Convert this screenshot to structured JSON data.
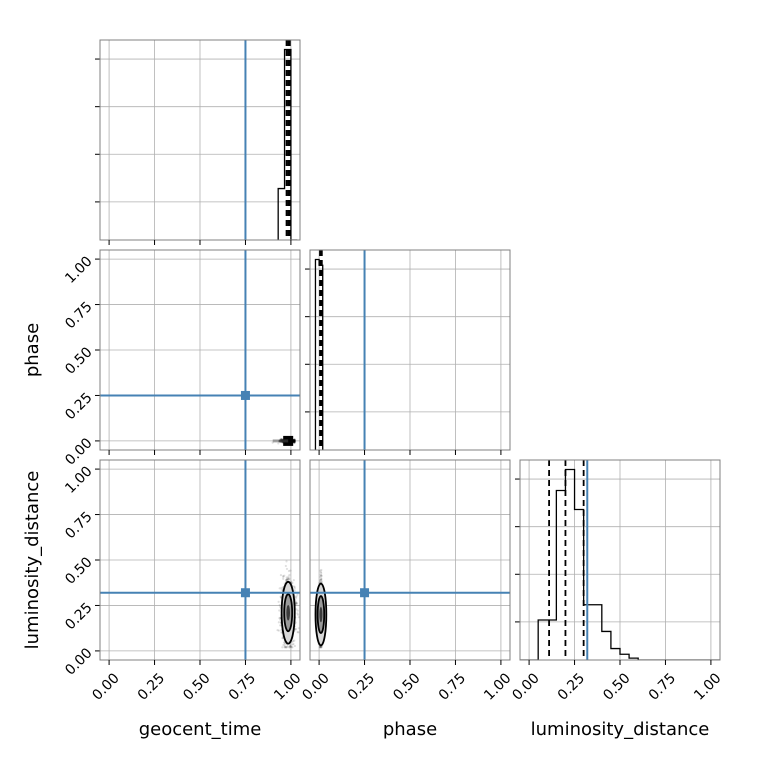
{
  "chart_data": {
    "type": "corner",
    "parameters": [
      "geocent_time",
      "phase",
      "luminosity_distance"
    ],
    "axis_labels": {
      "geocent_time": "geocent_time",
      "phase": "phase",
      "luminosity_distance": "luminosity_distance"
    },
    "range": [
      -0.05,
      1.05
    ],
    "ticks": [
      0.0,
      0.25,
      0.5,
      0.75,
      1.0
    ],
    "tick_labels": [
      "0.00",
      "0.25",
      "0.50",
      "0.75",
      "1.00"
    ],
    "grid": true,
    "truths": {
      "geocent_time": 0.75,
      "phase": 0.25,
      "luminosity_distance": 0.32
    },
    "truth_color": "#4682b4",
    "line_color": "#000000",
    "histograms": {
      "geocent_time": {
        "bins": [
          [
            0.93,
            0.965
          ],
          [
            0.965,
            1.0
          ],
          [
            1.0,
            1.035
          ]
        ],
        "counts": [
          0.27,
          1.0,
          0.0
        ],
        "quantiles": [
          0.976,
          0.985,
          0.994
        ]
      },
      "phase": {
        "bins": [
          [
            -0.02,
            0.0
          ],
          [
            0.0,
            0.02
          ]
        ],
        "counts": [
          1.0,
          0.97
        ],
        "quantiles": [
          0.005,
          0.01,
          0.015
        ]
      },
      "luminosity_distance": {
        "bins": [
          [
            -0.05,
            0.0
          ],
          [
            0.0,
            0.05
          ],
          [
            0.05,
            0.1
          ],
          [
            0.1,
            0.15
          ],
          [
            0.15,
            0.2
          ],
          [
            0.2,
            0.25
          ],
          [
            0.25,
            0.3
          ],
          [
            0.3,
            0.35
          ],
          [
            0.35,
            0.4
          ],
          [
            0.4,
            0.45
          ],
          [
            0.45,
            0.5
          ],
          [
            0.5,
            0.55
          ],
          [
            0.55,
            0.6
          ],
          [
            0.6,
            0.65
          ],
          [
            0.65,
            0.7
          ],
          [
            0.7,
            0.75
          ],
          [
            0.75,
            0.8
          ],
          [
            0.8,
            0.85
          ],
          [
            0.85,
            0.9
          ],
          [
            0.9,
            0.95
          ],
          [
            0.95,
            1.0
          ],
          [
            1.0,
            1.05
          ]
        ],
        "counts": [
          0.0,
          0.0,
          0.21,
          0.21,
          0.89,
          1.0,
          0.79,
          0.29,
          0.29,
          0.15,
          0.06,
          0.03,
          0.01,
          0.0,
          0.0,
          0.0,
          0.0,
          0.0,
          0.0,
          0.0,
          0.0,
          0.0
        ],
        "quantiles": [
          0.11,
          0.2,
          0.3
        ]
      }
    },
    "samples_2d": {
      "phase_vs_geocent_time": {
        "x_center": 0.985,
        "x_spread": 0.02,
        "y_center": 0.0,
        "y_spread": 0.004,
        "x_min": 0.88,
        "x_max": 1.02
      },
      "luminosity_distance_vs_geocent_time": {
        "x_center": 0.985,
        "x_spread": 0.02,
        "y_center": 0.21,
        "y_spread": 0.085,
        "y_min": 0.02,
        "y_max": 0.68
      },
      "luminosity_distance_vs_phase": {
        "x_center": 0.01,
        "x_spread": 0.004,
        "y_center": 0.2,
        "y_spread": 0.085,
        "y_min": 0.02,
        "y_max": 0.68
      }
    }
  }
}
